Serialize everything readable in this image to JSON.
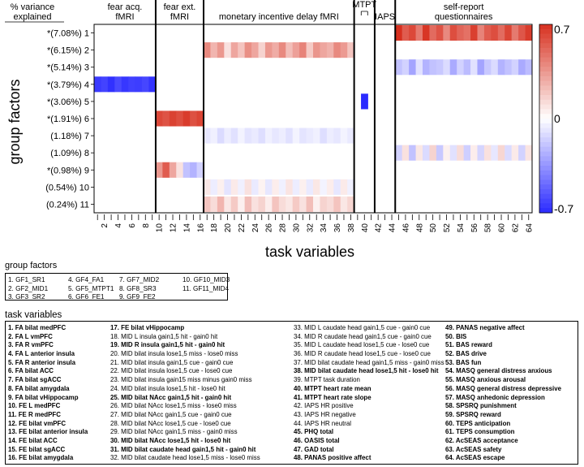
{
  "chart_data": {
    "type": "heatmap",
    "ylabel": "group factors",
    "xlabel": "task variables",
    "ylabel_header": [
      "% variance",
      "explained"
    ],
    "rows": [
      {
        "label": "*(7.08%) 1",
        "name": "GF1_SR1"
      },
      {
        "label": "*(6.15%) 2",
        "name": "GF2_MID1"
      },
      {
        "label": "*(5.14%) 3",
        "name": "GF3_SR2"
      },
      {
        "label": "*(3.79%) 4",
        "name": "GF4_FA1"
      },
      {
        "label": "*(3.06%) 5",
        "name": "GF5_MTPT1"
      },
      {
        "label": "*(1.91%) 6",
        "name": "GF6_FE1"
      },
      {
        "label": "(1.18%) 7",
        "name": "GF7_MID2"
      },
      {
        "label": "(1.09%) 8",
        "name": "GF8_SR3"
      },
      {
        "label": "*(0.98%) 9",
        "name": "GF9_FE2"
      },
      {
        "label": "(0.54%) 10",
        "name": "GF10_MID3"
      },
      {
        "label": "(0.24%) 11",
        "name": "GF11_MID4"
      }
    ],
    "x_ticks": [
      2,
      4,
      6,
      8,
      10,
      12,
      14,
      16,
      18,
      20,
      22,
      24,
      26,
      28,
      30,
      32,
      34,
      36,
      38,
      40,
      42,
      44,
      46,
      48,
      50,
      52,
      54,
      56,
      58,
      60,
      62,
      64
    ],
    "x_range": [
      1,
      64
    ],
    "sections": [
      {
        "label": "fear acq.\nfMRI",
        "from": 1,
        "to": 9
      },
      {
        "label": "fear ext.\nfMRI",
        "from": 10,
        "to": 16
      },
      {
        "label": "monetary incentive delay fMRI",
        "from": 17,
        "to": 38
      },
      {
        "label": "MTPT",
        "from": 39,
        "to": 41
      },
      {
        "label": "IAPS",
        "from": 42,
        "to": 44
      },
      {
        "label": "self-report\nquestionnaires",
        "from": 45,
        "to": 64
      }
    ],
    "colorbar": {
      "min": -0.7,
      "max": 0.7,
      "ticks": [
        "0.7",
        "0",
        "-0.7"
      ],
      "colors": [
        "#2b2bff",
        "#ffffff",
        "#d7301f"
      ]
    },
    "loadings": [
      {
        "row": 1,
        "from": 45,
        "to": 64,
        "values": [
          0.7,
          0.55,
          0.62,
          0.45,
          0.68,
          0.5,
          0.58,
          0.4,
          0.6,
          0.52,
          0.48,
          0.65,
          0.42,
          0.55,
          0.6,
          0.5,
          0.63,
          0.45,
          0.57,
          0.66
        ]
      },
      {
        "row": 2,
        "from": 17,
        "to": 38,
        "values": [
          0.4,
          0.25,
          0.35,
          0.1,
          0.3,
          0.2,
          0.38,
          0.3,
          0.15,
          0.35,
          0.28,
          0.4,
          0.22,
          0.32,
          0.42,
          0.18,
          0.36,
          0.3,
          0.26,
          0.4,
          0.34,
          0.2
        ]
      },
      {
        "row": 3,
        "from": 45,
        "to": 64,
        "values": [
          -0.2,
          -0.15,
          -0.3,
          -0.1,
          -0.25,
          -0.2,
          -0.18,
          -0.12,
          -0.28,
          -0.15,
          -0.22,
          -0.1,
          -0.3,
          -0.18,
          -0.12,
          -0.25,
          -0.2,
          -0.15,
          -0.28,
          -0.22
        ]
      },
      {
        "row": 4,
        "from": 1,
        "to": 9,
        "values": [
          -0.65,
          -0.62,
          -0.68,
          -0.6,
          -0.66,
          -0.63,
          -0.64,
          -0.61,
          -0.67
        ]
      },
      {
        "row": 5,
        "from": 40,
        "to": 40,
        "values": [
          -0.7
        ]
      },
      {
        "row": 6,
        "from": 10,
        "to": 16,
        "values": [
          0.62,
          0.58,
          0.64,
          0.6,
          0.66,
          0.59,
          0.63
        ]
      },
      {
        "row": 7,
        "from": 17,
        "to": 38,
        "values": [
          -0.08,
          -0.05,
          -0.12,
          -0.06,
          -0.1,
          -0.04,
          -0.09,
          -0.07,
          -0.11,
          -0.05,
          -0.08,
          -0.06,
          -0.1,
          -0.04,
          -0.09,
          -0.07,
          -0.05,
          -0.11,
          -0.06,
          -0.08,
          -0.04,
          -0.07
        ]
      },
      {
        "row": 8,
        "from": 45,
        "to": 64,
        "values": [
          -0.15,
          0.1,
          -0.2,
          0.08,
          -0.12,
          0.15,
          -0.18,
          0.05,
          -0.1,
          0.12,
          -0.16,
          0.06,
          -0.14,
          0.1,
          -0.08,
          0.14,
          -0.12,
          0.07,
          -0.15,
          0.09
        ]
      },
      {
        "row": 9,
        "from": 10,
        "to": 16,
        "values": [
          0.35,
          0.55,
          0.3,
          0.1,
          -0.2,
          -0.25,
          -0.15
        ]
      },
      {
        "row": 10,
        "from": 17,
        "to": 38,
        "values": [
          0.08,
          -0.06,
          0.05,
          -0.09,
          0.07,
          -0.05,
          0.1,
          -0.07,
          0.04,
          -0.08,
          0.06,
          -0.05,
          0.09,
          -0.06,
          0.05,
          -0.07,
          0.08,
          -0.04,
          0.06,
          -0.08,
          0.07,
          -0.05
        ]
      },
      {
        "row": 11,
        "from": 17,
        "to": 38,
        "values": [
          0.2,
          0.12,
          0.25,
          0.08,
          0.18,
          0.05,
          0.22,
          0.1,
          0.15,
          0.06,
          0.2,
          0.12,
          0.08,
          0.18,
          0.1,
          0.22,
          0.05,
          0.15,
          0.12,
          0.2,
          0.08,
          0.14
        ]
      }
    ]
  },
  "group_factors": {
    "title": "group factors",
    "items": [
      "1. GF1_SR1",
      "4. GF4_FA1",
      "7. GF7_MID2",
      "10. GF10_MID3",
      "2. GF2_MID1",
      "5. GF5_MTPT1",
      "8. GF8_SR3",
      "11. GF11_MID4",
      "3. GF3_SR2",
      "6. GF6_FE1",
      "9. GF9_FE2",
      ""
    ]
  },
  "task_variables": {
    "title": "task variables",
    "columns": [
      [
        {
          "t": "1. FA bilat medPFC",
          "b": true
        },
        {
          "t": "2. FA L vmPFC",
          "b": true
        },
        {
          "t": "3. FA R vmPFC",
          "b": true
        },
        {
          "t": "4. FA L anterior insula",
          "b": true
        },
        {
          "t": "5. FA R anterior insula",
          "b": true
        },
        {
          "t": "6. FA bilat ACC",
          "b": true
        },
        {
          "t": "7. FA bilat sgACC",
          "b": true
        },
        {
          "t": "8. FA bilat amygdala",
          "b": true
        },
        {
          "t": "9. FA bilat vHippocamp",
          "b": true
        },
        {
          "t": "10. FE L medPFC",
          "b": true
        },
        {
          "t": "11. FE R medPFC",
          "b": true
        },
        {
          "t": "12. FE bilat vmPFC",
          "b": true
        },
        {
          "t": "13. FE bilat anterior insula",
          "b": true
        },
        {
          "t": "14. FE bilat ACC",
          "b": true
        },
        {
          "t": "15. FE bilat sgACC",
          "b": true
        },
        {
          "t": "16. FE bilat amygdala",
          "b": true
        }
      ],
      [
        {
          "t": "17. FE bilat vHippocamp",
          "b": true
        },
        {
          "t": "18. MID L insula gain1,5 hit - gain0 hit",
          "b": false
        },
        {
          "t": "19. MID R insula gain1,5 hit - gain0 hit",
          "b": true
        },
        {
          "t": "20. MID bilat insula lose1,5 miss - lose0 miss",
          "b": false
        },
        {
          "t": "21. MID bilat insula gain1,5 cue - gain0 cue",
          "b": false
        },
        {
          "t": "22. MID bilat insula lose1,5 cue - lose0 cue",
          "b": false
        },
        {
          "t": "23. MID bilat insula gain15 miss minus gain0 miss",
          "b": false
        },
        {
          "t": "24. MID bilat insula lose1,5 hit - lose0 hit",
          "b": false
        },
        {
          "t": "25. MID bilat NAcc gain1,5 hit - gain0 hit",
          "b": true
        },
        {
          "t": "26. MID bilat NAcc lose1,5 miss - lose0 miss",
          "b": false
        },
        {
          "t": "27. MID bilat NAcc gain1,5 cue - gain0 cue",
          "b": false
        },
        {
          "t": "28. MID bilat NAcc lose1,5 cue - lose0 cue",
          "b": false
        },
        {
          "t": "29. MID bilat NAcc gain1,5 miss - gain0 miss",
          "b": false
        },
        {
          "t": "30. MID bilat NAcc lose1,5 hit - lose0 hit",
          "b": true
        },
        {
          "t": "31. MID bilat caudate head gain1,5 hit - gain0 hit",
          "b": true
        },
        {
          "t": "32. MID bilat caudate head lose1,5 miss - lose0 miss",
          "b": false
        }
      ],
      [
        {
          "t": "33. MID L caudate head gain1,5 cue - gain0 cue",
          "b": false
        },
        {
          "t": "34. MID R caudate head gain1,5 cue - gain0 cue",
          "b": false
        },
        {
          "t": "35. MID L caudate head lose1,5 cue - lose0 cue",
          "b": false
        },
        {
          "t": "36. MID R caudate head lose1,5 cue - lose0 cue",
          "b": false
        },
        {
          "t": "37. MID bilat caudate head gain1,5 miss - gain0 miss",
          "b": false
        },
        {
          "t": "38. MID bilat caudate head lose1,5 hit - lose0 hit",
          "b": true
        },
        {
          "t": "39. MTPT task duration",
          "b": false
        },
        {
          "t": "40. MTPT heart rate mean",
          "b": true
        },
        {
          "t": "41. MTPT heart rate slope",
          "b": true
        },
        {
          "t": "42. IAPS HR positive",
          "b": false
        },
        {
          "t": "43. IAPS HR negative",
          "b": false
        },
        {
          "t": "44. IAPS HR neutral",
          "b": false
        },
        {
          "t": "45. PHQ total",
          "b": true
        },
        {
          "t": "46. OASIS total",
          "b": true
        },
        {
          "t": "47. GAD total",
          "b": true
        },
        {
          "t": "48. PANAS positive affect",
          "b": true
        }
      ],
      [
        {
          "t": "49. PANAS negative affect",
          "b": true
        },
        {
          "t": "50. BIS",
          "b": true
        },
        {
          "t": "51. BAS reward",
          "b": true
        },
        {
          "t": "52. BAS drive",
          "b": true
        },
        {
          "t": "53. BAS fun",
          "b": true
        },
        {
          "t": "54. MASQ general distress anxious",
          "b": true
        },
        {
          "t": "55. MASQ anxious arousal",
          "b": true
        },
        {
          "t": "56. MASQ general distress depressive",
          "b": true
        },
        {
          "t": "57. MASQ anhedonic depression",
          "b": true
        },
        {
          "t": "58. SPSRQ punishment",
          "b": true
        },
        {
          "t": "59. SPSRQ reward",
          "b": true
        },
        {
          "t": "60. TEPS anticipation",
          "b": true
        },
        {
          "t": "61. TEPS consumption",
          "b": true
        },
        {
          "t": "62. AcSEAS acceptance",
          "b": true
        },
        {
          "t": "63. AcSEAS safety",
          "b": true
        },
        {
          "t": "64. AcSEAS escape",
          "b": true
        }
      ]
    ]
  }
}
